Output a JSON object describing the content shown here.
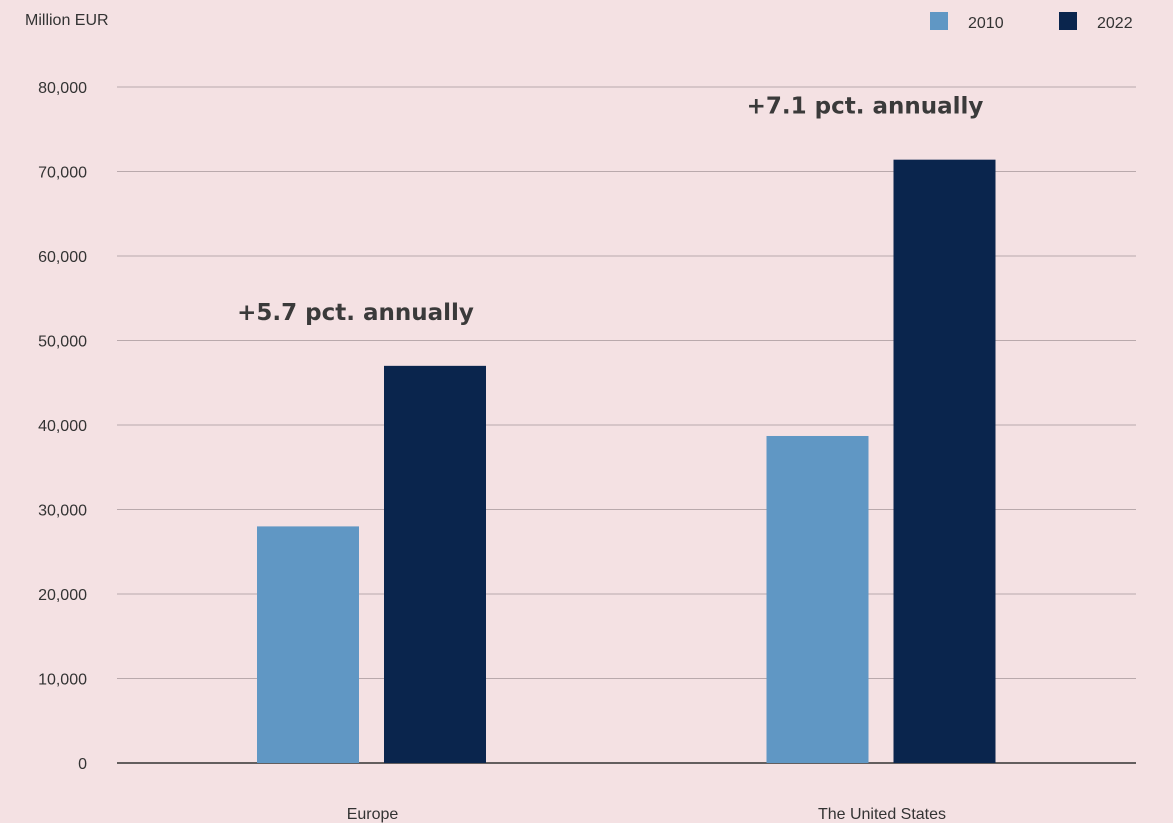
{
  "chart_data": {
    "type": "bar",
    "unit_label": "Million EUR",
    "categories": [
      "Europe",
      "The United States"
    ],
    "series": [
      {
        "name": "2010",
        "color": "#6097c4",
        "values": [
          28000,
          38700
        ]
      },
      {
        "name": "2022",
        "color": "#0a254d",
        "values": [
          47000,
          71400
        ]
      }
    ],
    "ylim": [
      0,
      80000
    ],
    "y_ticks": [
      0,
      10000,
      20000,
      30000,
      40000,
      50000,
      60000,
      70000,
      80000
    ],
    "y_tick_labels": [
      "0",
      "10,000",
      "20,000",
      "30,000",
      "40,000",
      "50,000",
      "60,000",
      "70,000",
      "80,000"
    ],
    "annotations": [
      {
        "category": "Europe",
        "text": "+5.7 pct. annually"
      },
      {
        "category": "The United States",
        "text": "+7.1 pct. annually"
      }
    ],
    "legend_position": "top-right",
    "grid": true
  }
}
